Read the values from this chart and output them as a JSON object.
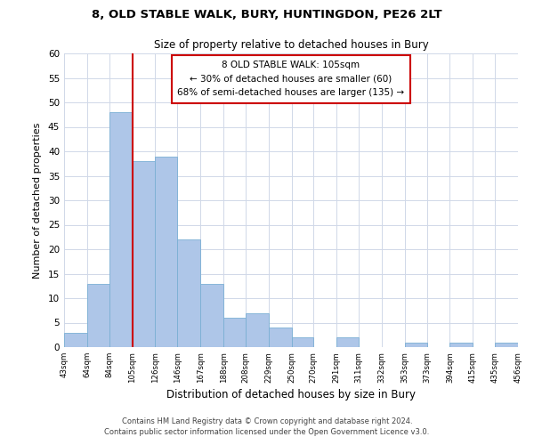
{
  "title": "8, OLD STABLE WALK, BURY, HUNTINGDON, PE26 2LT",
  "subtitle": "Size of property relative to detached houses in Bury",
  "xlabel": "Distribution of detached houses by size in Bury",
  "ylabel": "Number of detached properties",
  "bin_edges": [
    43,
    64,
    84,
    105,
    126,
    146,
    167,
    188,
    208,
    229,
    250,
    270,
    291,
    311,
    332,
    353,
    373,
    394,
    415,
    435,
    456
  ],
  "counts": [
    3,
    13,
    48,
    38,
    39,
    22,
    13,
    6,
    7,
    4,
    2,
    0,
    2,
    0,
    0,
    1,
    0,
    1,
    0,
    1
  ],
  "bar_color": "#aec6e8",
  "bar_edge_color": "#7aafd4",
  "vline_x": 105,
  "vline_color": "#cc0000",
  "annotation_text": "8 OLD STABLE WALK: 105sqm\n← 30% of detached houses are smaller (60)\n68% of semi-detached houses are larger (135) →",
  "annotation_box_color": "#ffffff",
  "annotation_box_edge": "#cc0000",
  "ylim": [
    0,
    60
  ],
  "yticks": [
    0,
    5,
    10,
    15,
    20,
    25,
    30,
    35,
    40,
    45,
    50,
    55,
    60
  ],
  "footer_line1": "Contains HM Land Registry data © Crown copyright and database right 2024.",
  "footer_line2": "Contains public sector information licensed under the Open Government Licence v3.0.",
  "background_color": "#ffffff",
  "grid_color": "#d0d8e8"
}
